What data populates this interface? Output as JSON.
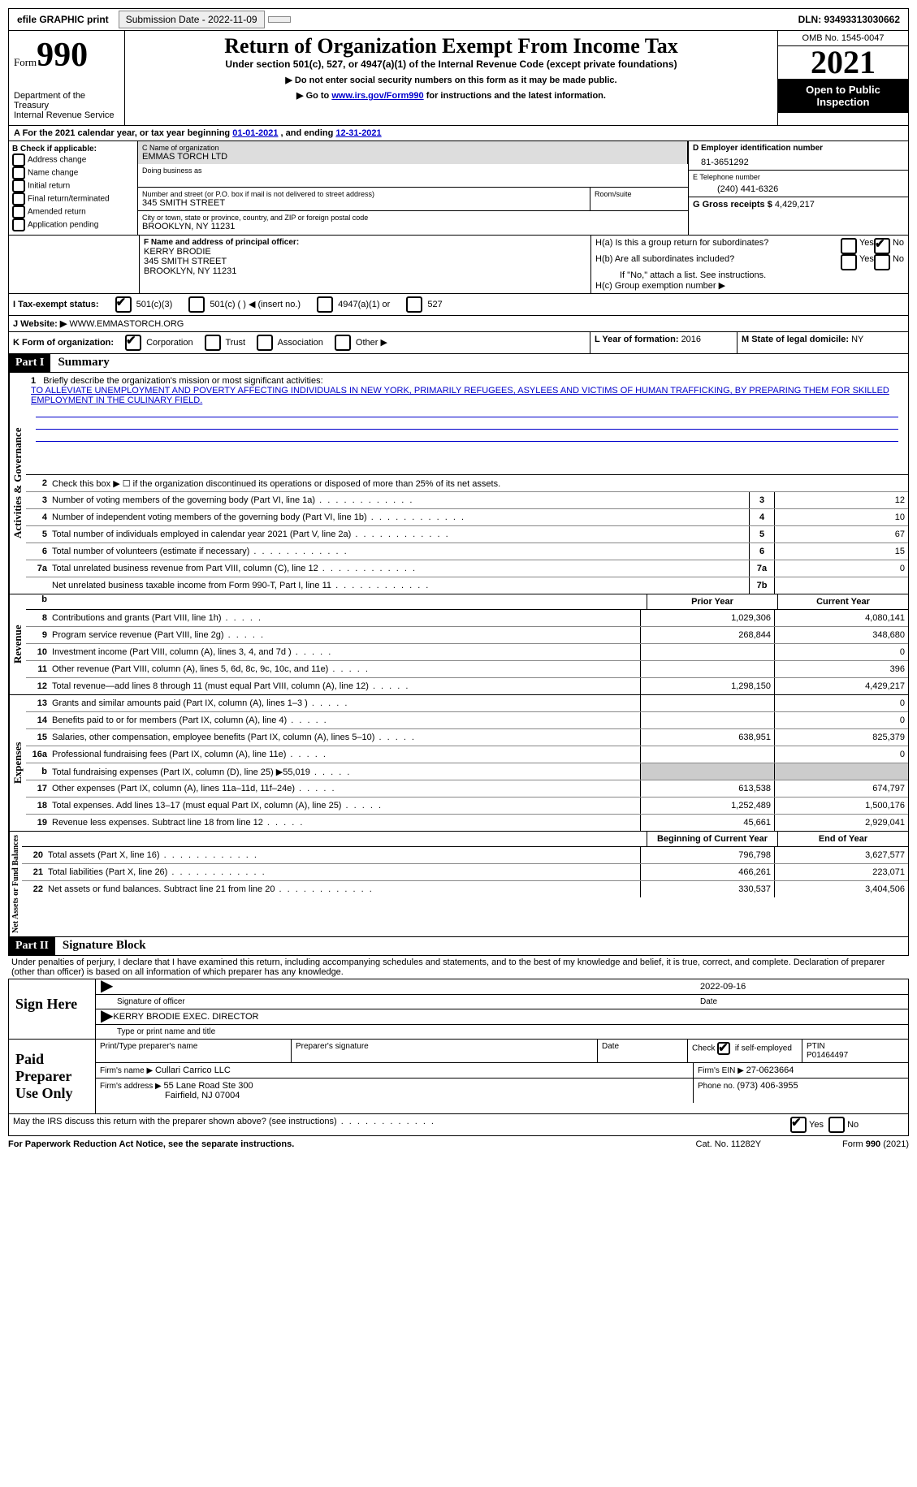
{
  "topbar": {
    "efile": "efile GRAPHIC print",
    "submission": "Submission Date - 2022-11-09",
    "dln": "DLN: 93493313030662"
  },
  "header": {
    "form_label": "Form",
    "form_num": "990",
    "dept": "Department of the Treasury",
    "irs": "Internal Revenue Service",
    "title": "Return of Organization Exempt From Income Tax",
    "subtitle": "Under section 501(c), 527, or 4947(a)(1) of the Internal Revenue Code (except private foundations)",
    "hint1": "▶ Do not enter social security numbers on this form as it may be made public.",
    "hint2_pre": "▶ Go to ",
    "hint2_link": "www.irs.gov/Form990",
    "hint2_post": " for instructions and the latest information.",
    "omb": "OMB No. 1545-0047",
    "year": "2021",
    "inspect": "Open to Public Inspection"
  },
  "period": {
    "text_a": "A For the 2021 calendar year, or tax year beginning ",
    "begin": "01-01-2021",
    "text_b": " , and ending ",
    "end": "12-31-2021"
  },
  "section_b": {
    "b_label": "B Check if applicable:",
    "opts": [
      "Address change",
      "Name change",
      "Initial return",
      "Final return/terminated",
      "Amended return",
      "Application pending"
    ],
    "c_name_label": "C Name of organization",
    "org_name": "EMMAS TORCH LTD",
    "dba_label": "Doing business as",
    "addr_label": "Number and street (or P.O. box if mail is not delivered to street address)",
    "addr": "345 SMITH STREET",
    "room_label": "Room/suite",
    "city_label": "City or town, state or province, country, and ZIP or foreign postal code",
    "city": "BROOKLYN, NY  11231",
    "d_label": "D Employer identification number",
    "ein": "81-3651292",
    "e_label": "E Telephone number",
    "phone": "(240) 441-6326",
    "g_label": "G Gross receipts $ ",
    "gross": "4,429,217"
  },
  "section_f": {
    "f_label": "F Name and address of principal officer:",
    "officer_name": "KERRY BRODIE",
    "officer_addr1": "345 SMITH STREET",
    "officer_addr2": "BROOKLYN, NY  11231",
    "h_a": "H(a)  Is this a group return for subordinates?",
    "h_b": "H(b)  Are all subordinates included?",
    "h_note": "If \"No,\" attach a list. See instructions.",
    "h_c": "H(c)  Group exemption number ▶",
    "yes": "Yes",
    "no": "No"
  },
  "tax_status": {
    "i_label": "I  Tax-exempt status:",
    "opt1": "501(c)(3)",
    "opt2": "501(c) (  ) ◀ (insert no.)",
    "opt3": "4947(a)(1) or",
    "opt4": "527"
  },
  "website": {
    "j_label": "J  Website: ▶",
    "url": "WWW.EMMASTORCH.ORG"
  },
  "form_org": {
    "k_label": "K Form of organization:",
    "corp": "Corporation",
    "trust": "Trust",
    "assoc": "Association",
    "other": "Other ▶",
    "l_label": "L Year of formation: ",
    "l_val": "2016",
    "m_label": "M State of legal domicile: ",
    "m_val": "NY"
  },
  "part1": {
    "header": "Part I",
    "title": "Summary",
    "vtab1": "Activities & Governance",
    "vtab2": "Revenue",
    "vtab3": "Expenses",
    "vtab4": "Net Assets or Fund Balances",
    "line1_label": "Briefly describe the organization's mission or most significant activities:",
    "mission": "TO ALLEVIATE UNEMPLOYMENT AND POVERTY AFFECTING INDIVIDUALS IN NEW YORK, PRIMARILY REFUGEES, ASYLEES AND VICTIMS OF HUMAN TRAFFICKING, BY PREPARING THEM FOR SKILLED EMPLOYMENT IN THE CULINARY FIELD.",
    "line2": "Check this box ▶ ☐ if the organization discontinued its operations or disposed of more than 25% of its net assets.",
    "lines": [
      {
        "n": "3",
        "t": "Number of voting members of the governing body (Part VI, line 1a)",
        "box": "3",
        "v": "12"
      },
      {
        "n": "4",
        "t": "Number of independent voting members of the governing body (Part VI, line 1b)",
        "box": "4",
        "v": "10"
      },
      {
        "n": "5",
        "t": "Total number of individuals employed in calendar year 2021 (Part V, line 2a)",
        "box": "5",
        "v": "67"
      },
      {
        "n": "6",
        "t": "Total number of volunteers (estimate if necessary)",
        "box": "6",
        "v": "15"
      },
      {
        "n": "7a",
        "t": "Total unrelated business revenue from Part VIII, column (C), line 12",
        "box": "7a",
        "v": "0"
      },
      {
        "n": "",
        "t": "Net unrelated business taxable income from Form 990-T, Part I, line 11",
        "box": "7b",
        "v": ""
      }
    ],
    "col_prior": "Prior Year",
    "col_current": "Current Year",
    "rev": [
      {
        "n": "8",
        "t": "Contributions and grants (Part VIII, line 1h)",
        "p": "1,029,306",
        "c": "4,080,141"
      },
      {
        "n": "9",
        "t": "Program service revenue (Part VIII, line 2g)",
        "p": "268,844",
        "c": "348,680"
      },
      {
        "n": "10",
        "t": "Investment income (Part VIII, column (A), lines 3, 4, and 7d )",
        "p": "",
        "c": "0"
      },
      {
        "n": "11",
        "t": "Other revenue (Part VIII, column (A), lines 5, 6d, 8c, 9c, 10c, and 11e)",
        "p": "",
        "c": "396"
      },
      {
        "n": "12",
        "t": "Total revenue—add lines 8 through 11 (must equal Part VIII, column (A), line 12)",
        "p": "1,298,150",
        "c": "4,429,217"
      }
    ],
    "exp": [
      {
        "n": "13",
        "t": "Grants and similar amounts paid (Part IX, column (A), lines 1–3 )",
        "p": "",
        "c": "0"
      },
      {
        "n": "14",
        "t": "Benefits paid to or for members (Part IX, column (A), line 4)",
        "p": "",
        "c": "0"
      },
      {
        "n": "15",
        "t": "Salaries, other compensation, employee benefits (Part IX, column (A), lines 5–10)",
        "p": "638,951",
        "c": "825,379"
      },
      {
        "n": "16a",
        "t": "Professional fundraising fees (Part IX, column (A), line 11e)",
        "p": "",
        "c": "0"
      },
      {
        "n": "b",
        "t": "Total fundraising expenses (Part IX, column (D), line 25) ▶55,019",
        "p": "grey",
        "c": "grey"
      },
      {
        "n": "17",
        "t": "Other expenses (Part IX, column (A), lines 11a–11d, 11f–24e)",
        "p": "613,538",
        "c": "674,797"
      },
      {
        "n": "18",
        "t": "Total expenses. Add lines 13–17 (must equal Part IX, column (A), line 25)",
        "p": "1,252,489",
        "c": "1,500,176"
      },
      {
        "n": "19",
        "t": "Revenue less expenses. Subtract line 18 from line 12",
        "p": "45,661",
        "c": "2,929,041"
      }
    ],
    "col_begin": "Beginning of Current Year",
    "col_end": "End of Year",
    "net": [
      {
        "n": "20",
        "t": "Total assets (Part X, line 16)",
        "p": "796,798",
        "c": "3,627,577"
      },
      {
        "n": "21",
        "t": "Total liabilities (Part X, line 26)",
        "p": "466,261",
        "c": "223,071"
      },
      {
        "n": "22",
        "t": "Net assets or fund balances. Subtract line 21 from line 20",
        "p": "330,537",
        "c": "3,404,506"
      }
    ]
  },
  "part2": {
    "header": "Part II",
    "title": "Signature Block",
    "penalty": "Under penalties of perjury, I declare that I have examined this return, including accompanying schedules and statements, and to the best of my knowledge and belief, it is true, correct, and complete. Declaration of preparer (other than officer) is based on all information of which preparer has any knowledge.",
    "sign_here": "Sign Here",
    "sig_officer": "Signature of officer",
    "sig_date_val": "2022-09-16",
    "sig_date": "Date",
    "sig_name": "KERRY BRODIE  EXEC. DIRECTOR",
    "sig_type": "Type or print name and title",
    "paid": "Paid Preparer Use Only",
    "prep_name_label": "Print/Type preparer's name",
    "prep_sig_label": "Preparer's signature",
    "prep_date_label": "Date",
    "check_self": "Check ☑ if self-employed",
    "ptin_label": "PTIN",
    "ptin": "P01464497",
    "firm_name_label": "Firm's name    ▶ ",
    "firm_name": "Cullari Carrico LLC",
    "firm_ein_label": "Firm's EIN ▶ ",
    "firm_ein": "27-0623664",
    "firm_addr_label": "Firm's address ▶ ",
    "firm_addr1": "55 Lane Road Ste 300",
    "firm_addr2": "Fairfield, NJ  07004",
    "firm_phone_label": "Phone no. ",
    "firm_phone": "(973) 406-3955",
    "discuss": "May the IRS discuss this return with the preparer shown above? (see instructions)",
    "yes": "Yes",
    "no": "No"
  },
  "footer": {
    "left": "For Paperwork Reduction Act Notice, see the separate instructions.",
    "mid": "Cat. No. 11282Y",
    "right": "Form 990 (2021)"
  }
}
